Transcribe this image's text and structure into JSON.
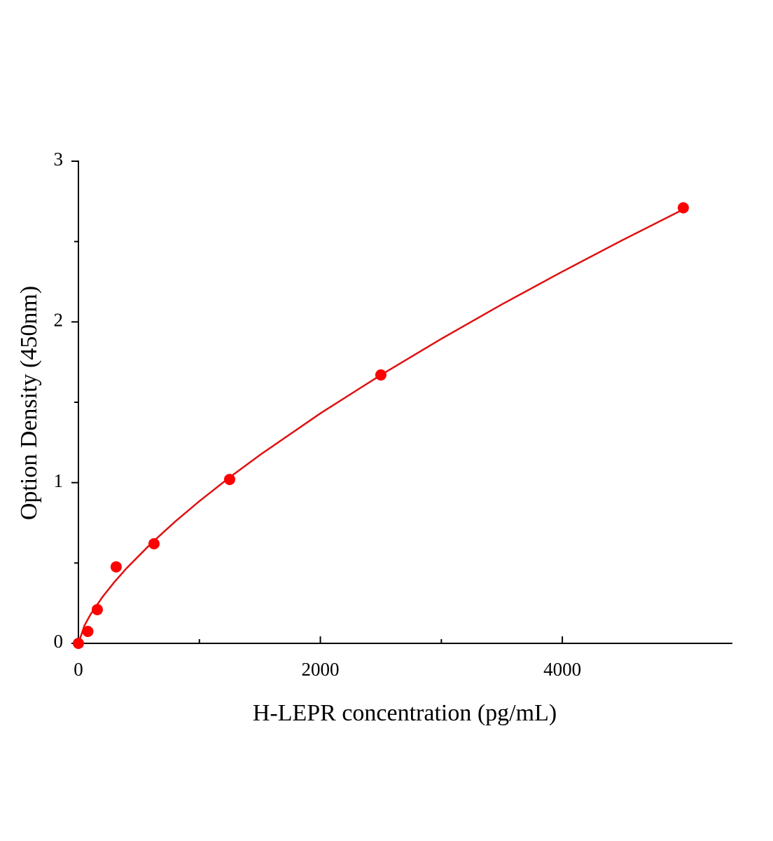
{
  "chart_data": {
    "type": "scatter",
    "xlabel": "H-LEPR concentration (pg/mL)",
    "ylabel": "Option Density (450nm)",
    "xlim": [
      0,
      5400
    ],
    "xticks": [
      0,
      2000,
      4000
    ],
    "xminorticks": [
      1000,
      3000
    ],
    "ylim": [
      0,
      3
    ],
    "yticks": [
      0,
      1,
      2,
      3
    ],
    "yminorticks": [
      0.5,
      1.5,
      2.5
    ],
    "grid": false,
    "series": [
      {
        "type": "scatter",
        "color": "#ff0000",
        "x": [
          0,
          78,
          156,
          312,
          625,
          1250,
          2500,
          5000
        ],
        "values": [
          0,
          0.074,
          0.21,
          0.476,
          0.62,
          1.02,
          1.67,
          2.71
        ]
      },
      {
        "type": "line",
        "color": "#e01010",
        "x": [
          0,
          50,
          100,
          200,
          300,
          400,
          600,
          800,
          1000,
          1250,
          1500,
          2000,
          2500,
          3000,
          3500,
          4000,
          4500,
          5000
        ],
        "values": [
          0,
          0.111,
          0.18,
          0.29,
          0.384,
          0.469,
          0.621,
          0.758,
          0.885,
          1.033,
          1.172,
          1.431,
          1.67,
          1.895,
          2.109,
          2.313,
          2.51,
          2.7
        ]
      }
    ]
  }
}
